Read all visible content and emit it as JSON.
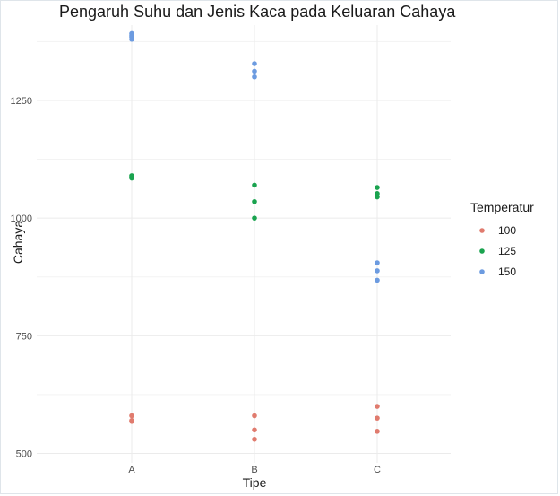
{
  "chart_data": {
    "type": "scatter",
    "title": "Pengaruh Suhu dan Jenis Kaca pada Keluaran Cahaya",
    "xlabel": "Tipe",
    "ylabel": "Cahaya",
    "categories": [
      "A",
      "B",
      "C"
    ],
    "yticks": [
      500,
      750,
      1000,
      1250
    ],
    "ylim": [
      480,
      1410
    ],
    "grid": true,
    "legend": {
      "title": "Temperatur",
      "placement": "right"
    },
    "series": [
      {
        "name": "100",
        "color": "#e07b6e",
        "points": [
          [
            "A",
            580
          ],
          [
            "A",
            568
          ],
          [
            "A",
            570
          ],
          [
            "B",
            580
          ],
          [
            "B",
            550
          ],
          [
            "B",
            530
          ],
          [
            "C",
            600
          ],
          [
            "C",
            575
          ],
          [
            "C",
            547
          ]
        ]
      },
      {
        "name": "125",
        "color": "#1aa34f",
        "points": [
          [
            "A",
            1090
          ],
          [
            "A",
            1085
          ],
          [
            "A",
            1087
          ],
          [
            "B",
            1070
          ],
          [
            "B",
            1035
          ],
          [
            "B",
            1000
          ],
          [
            "C",
            1065
          ],
          [
            "C",
            1052
          ],
          [
            "C",
            1045
          ]
        ]
      },
      {
        "name": "150",
        "color": "#6c9be0",
        "points": [
          [
            "A",
            1392
          ],
          [
            "A",
            1380
          ],
          [
            "A",
            1385
          ],
          [
            "A",
            1388
          ],
          [
            "B",
            1328
          ],
          [
            "B",
            1312
          ],
          [
            "B",
            1300
          ],
          [
            "C",
            905
          ],
          [
            "C",
            888
          ],
          [
            "C",
            868
          ]
        ]
      }
    ]
  }
}
